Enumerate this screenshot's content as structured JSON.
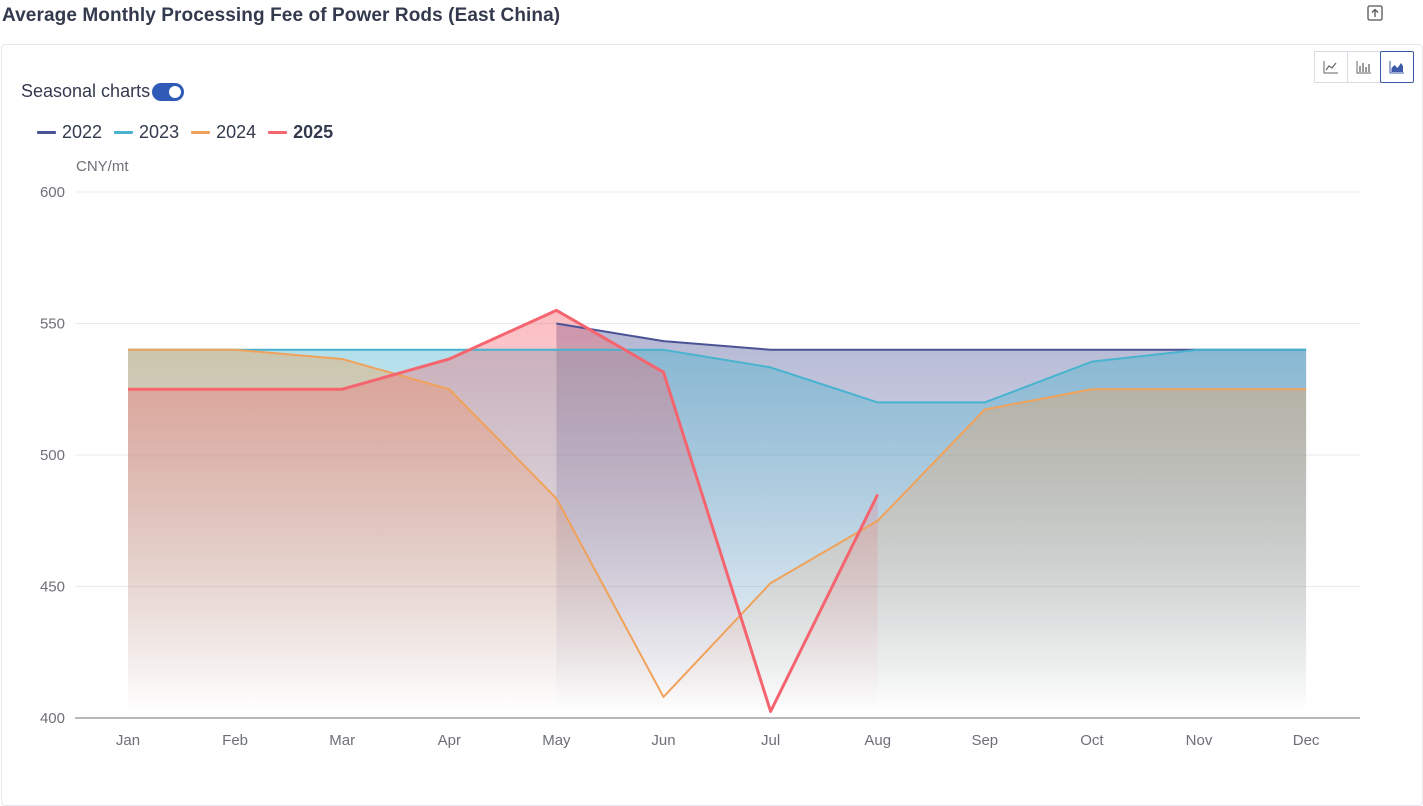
{
  "page": {
    "title": "Average Monthly Processing Fee of Power Rods (East China)"
  },
  "toolbar": {
    "export_icon": "export-icon",
    "chart_types": [
      {
        "name": "line",
        "icon": "line-chart-icon",
        "active": false
      },
      {
        "name": "bar",
        "icon": "bar-chart-icon",
        "active": false
      },
      {
        "name": "area",
        "icon": "area-chart-icon",
        "active": true
      }
    ]
  },
  "controls": {
    "seasonal_label": "Seasonal charts",
    "seasonal_on": true
  },
  "chart_data": {
    "type": "area",
    "title": "Average Monthly Processing Fee of Power Rods (East China)",
    "ylabel": "CNY/mt",
    "xlabel": "",
    "categories": [
      "Jan",
      "Feb",
      "Mar",
      "Apr",
      "May",
      "Jun",
      "Jul",
      "Aug",
      "Sep",
      "Oct",
      "Nov",
      "Dec"
    ],
    "ylim": [
      400,
      600
    ],
    "yticks": [
      400,
      450,
      500,
      550,
      600
    ],
    "grid": true,
    "legend_position": "top-left",
    "series": [
      {
        "name": "2022",
        "color": "#4a5395",
        "values": [
          null,
          null,
          null,
          null,
          550,
          543.3,
          540,
          540,
          540,
          540,
          540,
          540
        ]
      },
      {
        "name": "2023",
        "color": "#48b3cf",
        "values": [
          540,
          540,
          540,
          540,
          540,
          540,
          533.3,
          520,
          520,
          535.5,
          540,
          540
        ]
      },
      {
        "name": "2024",
        "color": "#f0a25a",
        "values": [
          540,
          540,
          536.5,
          525,
          483.5,
          408,
          451.3,
          475,
          517.3,
          525,
          525,
          525
        ]
      },
      {
        "name": "2025",
        "color": "#f4656f",
        "bold": true,
        "values": [
          525,
          525,
          525,
          536.5,
          555,
          531.5,
          402.5,
          485,
          null,
          null,
          null,
          null
        ]
      }
    ]
  }
}
